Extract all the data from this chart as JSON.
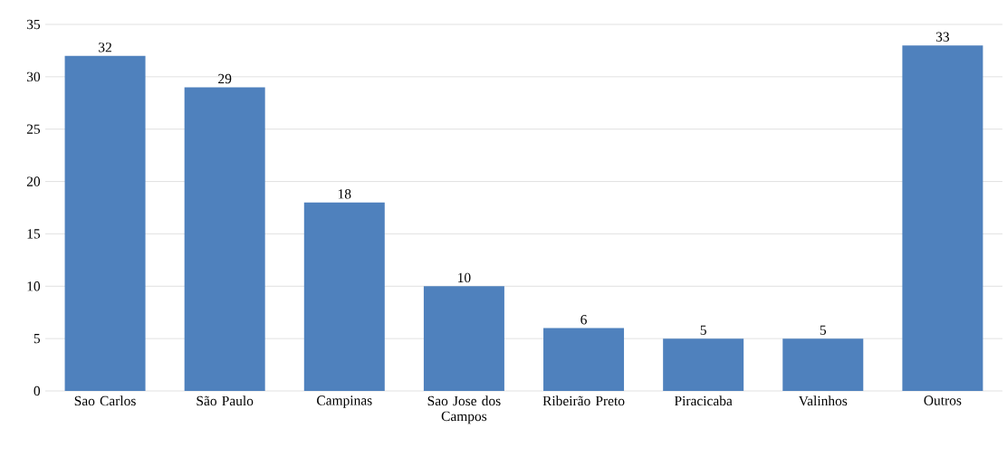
{
  "chart_data": {
    "type": "bar",
    "categories": [
      "Sao Carlos",
      "São Paulo",
      "Campinas",
      "Sao Jose dos Campos",
      "Ribeirão Preto",
      "Piracicaba",
      "Valinhos",
      "Outros"
    ],
    "values": [
      32,
      29,
      18,
      10,
      6,
      5,
      5,
      33
    ],
    "color": "#4f81bd",
    "ylim": [
      0,
      35
    ],
    "yticks": [
      0,
      5,
      10,
      15,
      20,
      25,
      30,
      35
    ],
    "grid": "y",
    "data_labels": true
  }
}
